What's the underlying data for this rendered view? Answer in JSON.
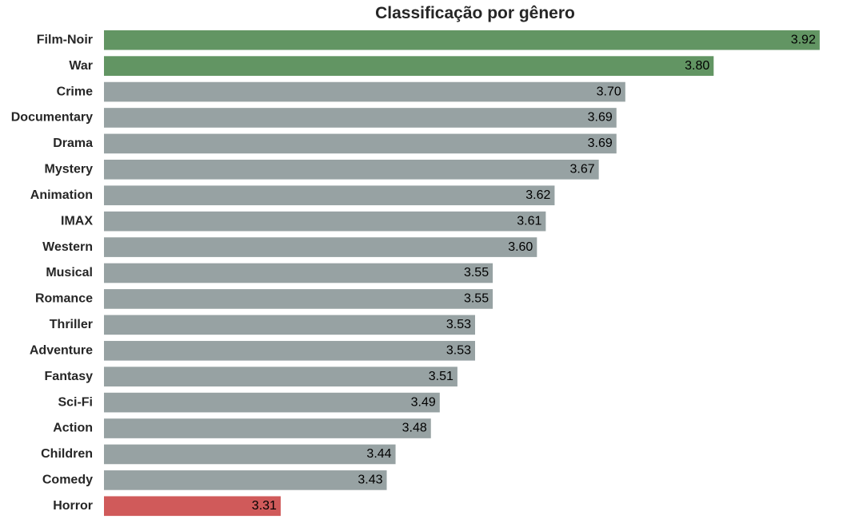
{
  "chart_data": {
    "type": "bar",
    "orientation": "horizontal",
    "title": "Classificação por gênero",
    "xlabel": "",
    "ylabel": "",
    "grid": false,
    "legend": "none",
    "xlim": [
      3.11,
      3.95
    ],
    "categories": [
      "Film-Noir",
      "War",
      "Crime",
      "Documentary",
      "Drama",
      "Mystery",
      "Animation",
      "IMAX",
      "Western",
      "Musical",
      "Romance",
      "Thriller",
      "Adventure",
      "Fantasy",
      "Sci-Fi",
      "Action",
      "Children",
      "Comedy",
      "Horror"
    ],
    "values": [
      3.92,
      3.8,
      3.7,
      3.69,
      3.69,
      3.67,
      3.62,
      3.61,
      3.6,
      3.55,
      3.55,
      3.53,
      3.53,
      3.51,
      3.49,
      3.48,
      3.44,
      3.43,
      3.31
    ],
    "value_labels": [
      "3.92",
      "3.80",
      "3.70",
      "3.69",
      "3.69",
      "3.67",
      "3.62",
      "3.61",
      "3.60",
      "3.55",
      "3.55",
      "3.53",
      "3.53",
      "3.51",
      "3.49",
      "3.48",
      "3.44",
      "3.43",
      "3.31"
    ],
    "bar_colors": [
      "#629563",
      "#629563",
      "#97a2a3",
      "#97a2a3",
      "#97a2a3",
      "#97a2a3",
      "#97a2a3",
      "#97a2a3",
      "#97a2a3",
      "#97a2a3",
      "#97a2a3",
      "#97a2a3",
      "#97a2a3",
      "#97a2a3",
      "#97a2a3",
      "#97a2a3",
      "#97a2a3",
      "#97a2a3",
      "#d05a5a"
    ]
  }
}
